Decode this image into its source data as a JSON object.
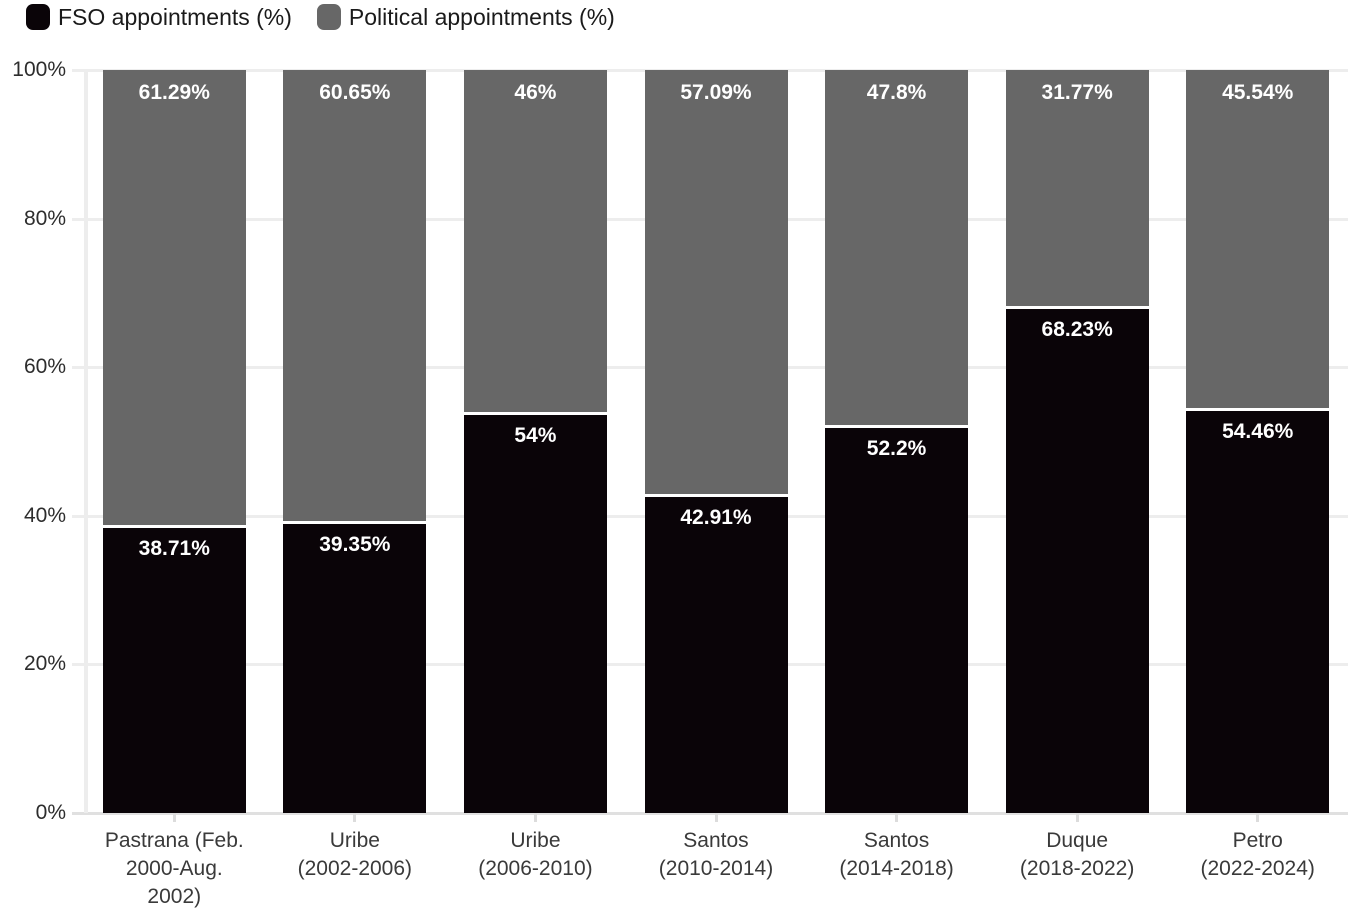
{
  "legend": {
    "items": [
      {
        "label": "FSO appointments (%)",
        "color": "#0a0408"
      },
      {
        "label": "Political appointments (%)",
        "color": "#676767"
      }
    ]
  },
  "chart_data": {
    "type": "bar",
    "stacked": true,
    "title": "",
    "xlabel": "",
    "ylabel": "",
    "ylim": [
      0,
      100
    ],
    "grid": true,
    "legend_position": "top-left",
    "categories": [
      "Pastrana (Feb. 2000-Aug. 2002)",
      "Uribe (2002-2006)",
      "Uribe (2006-2010)",
      "Santos (2010-2014)",
      "Santos (2014-2018)",
      "Duque (2018-2022)",
      "Petro (2022-2024)"
    ],
    "category_lines": [
      [
        "Pastrana (Feb.",
        "2000-Aug.",
        "2002)"
      ],
      [
        "Uribe",
        "(2002-2006)"
      ],
      [
        "Uribe",
        "(2006-2010)"
      ],
      [
        "Santos",
        "(2010-2014)"
      ],
      [
        "Santos",
        "(2014-2018)"
      ],
      [
        "Duque",
        "(2018-2022)"
      ],
      [
        "Petro",
        "(2022-2024)"
      ]
    ],
    "series": [
      {
        "name": "FSO appointments (%)",
        "color": "#0a0408",
        "values": [
          38.71,
          39.35,
          54,
          42.91,
          52.2,
          68.23,
          54.46
        ],
        "labels": [
          "38.71%",
          "39.35%",
          "54%",
          "42.91%",
          "52.2%",
          "68.23%",
          "54.46%"
        ]
      },
      {
        "name": "Political appointments (%)",
        "color": "#676767",
        "values": [
          61.29,
          60.65,
          46,
          57.09,
          47.8,
          31.77,
          45.54
        ],
        "labels": [
          "61.29%",
          "60.65%",
          "46%",
          "57.09%",
          "47.8%",
          "31.77%",
          "45.54%"
        ]
      }
    ],
    "y_ticks": [
      {
        "value": 0,
        "label": "0%"
      },
      {
        "value": 20,
        "label": "20%"
      },
      {
        "value": 40,
        "label": "40%"
      },
      {
        "value": 60,
        "label": "60%"
      },
      {
        "value": 80,
        "label": "80%"
      },
      {
        "value": 100,
        "label": "100%"
      }
    ]
  },
  "style": {
    "gridline_color": "#ededed",
    "zero_line_color": "#e0e0e0",
    "tick_color": "#dcdcdc",
    "bar_label_color": "#ffffff",
    "segment_separator_color": "#ffffff"
  }
}
